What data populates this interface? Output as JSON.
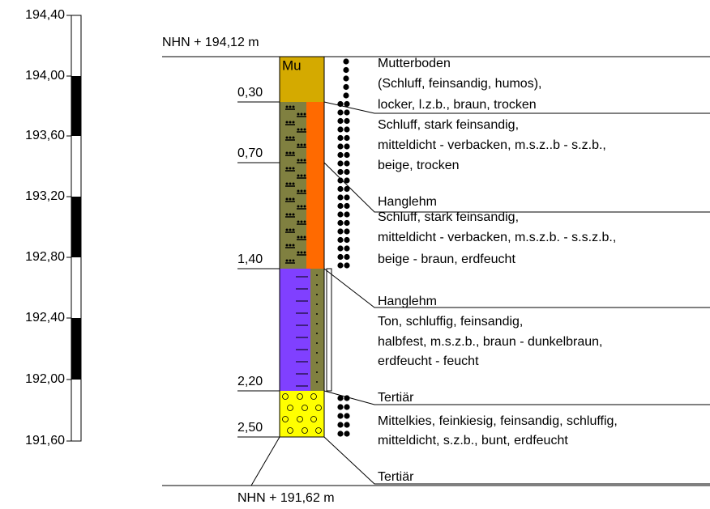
{
  "scale": {
    "labels": [
      "194,40",
      "194,00",
      "193,60",
      "193,20",
      "192,80",
      "192,40",
      "192,00",
      "191,60"
    ]
  },
  "top_label": "NHN + 194,12 m",
  "bottom_label": "NHN + 191,62 m",
  "column_symbol": "Mu",
  "layers": [
    {
      "depth": "0,30",
      "description": [
        "Mutterboden",
        "(Schluff, feinsandig, humos),",
        "locker, l.z.b., braun, trocken"
      ]
    },
    {
      "depth": "0,70",
      "description": [
        "Schluff, stark feinsandig,",
        "mitteldicht - verbacken, m.s.z..b - s.z.b.,",
        "beige, trocken"
      ],
      "stratigraphy": "Hanglehm"
    },
    {
      "depth": "1,40",
      "description": [
        "Schluff, stark feinsandig,",
        "mitteldicht - verbacken, m.s.z.b. - s.s.z.b.,",
        "beige - braun, erdfeucht"
      ],
      "stratigraphy": "Hanglehm"
    },
    {
      "depth": "2,20",
      "description": [
        "Ton, schluffig, feinsandig,",
        "halbfest, m.s.z.b., braun - dunkelbraun,",
        "erdfeucht - feucht"
      ],
      "stratigraphy": "Tertiär"
    },
    {
      "depth": "2,50",
      "description": [
        "Mittelkies, feinkiesig, feinsandig, schluffig,",
        "mitteldicht, s.z.b., bunt, erdfeucht"
      ],
      "stratigraphy": "Tertiär"
    }
  ]
}
